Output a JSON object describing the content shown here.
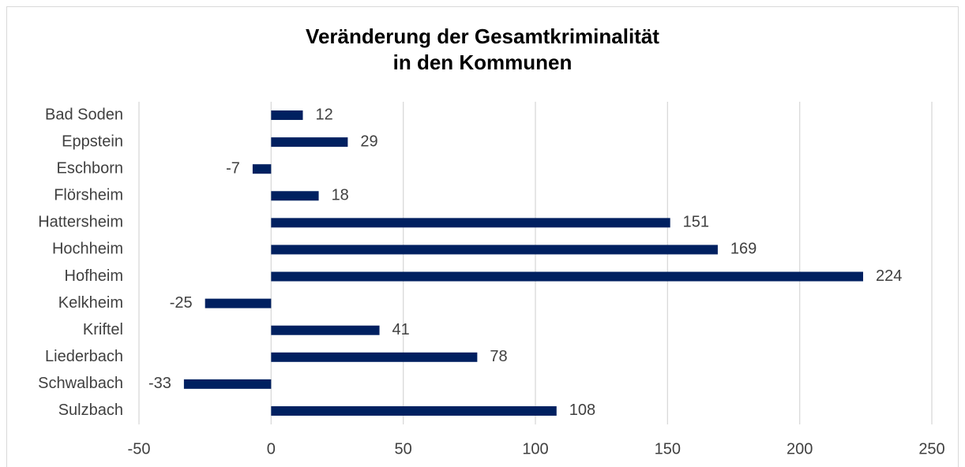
{
  "chart_data": {
    "type": "barh",
    "title": [
      "Veränderung der Gesamtkriminalität",
      "in den Kommunen"
    ],
    "categories": [
      "Bad Soden",
      "Eppstein",
      "Eschborn",
      "Flörsheim",
      "Hattersheim",
      "Hochheim",
      "Hofheim",
      "Kelkheim",
      "Kriftel",
      "Liederbach",
      "Schwalbach",
      "Sulzbach"
    ],
    "values": [
      12,
      29,
      -7,
      18,
      151,
      169,
      224,
      -25,
      41,
      78,
      -33,
      108
    ],
    "color": "#002060",
    "xlim": [
      -50,
      250
    ],
    "xticks": [
      -50,
      0,
      50,
      100,
      150,
      200,
      250
    ],
    "grid": true
  }
}
